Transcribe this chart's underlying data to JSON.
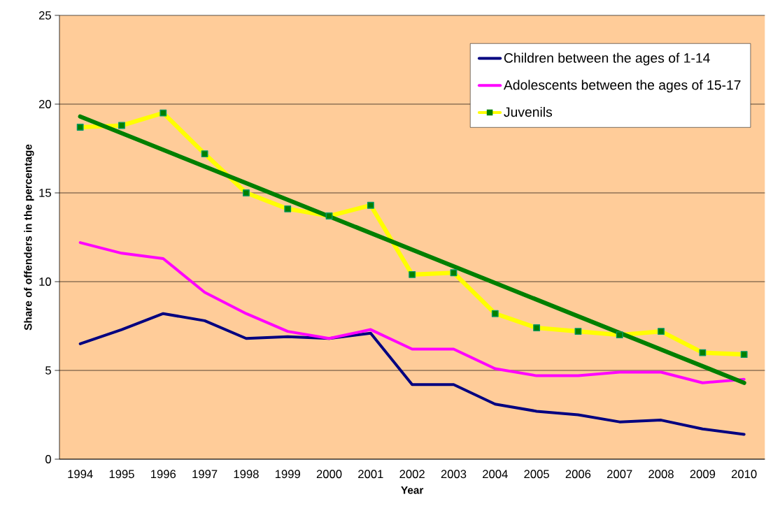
{
  "chart_data": {
    "type": "line",
    "xlabel": "Year",
    "ylabel": "Share of offenders in the percentage",
    "categories": [
      "1994",
      "1995",
      "1996",
      "1997",
      "1998",
      "1999",
      "2000",
      "2001",
      "2002",
      "2003",
      "2004",
      "2005",
      "2006",
      "2007",
      "2008",
      "2009",
      "2010"
    ],
    "series": [
      {
        "name": "Children between the ages of 1-14",
        "color": "#000080",
        "values": [
          6.5,
          7.3,
          8.2,
          7.8,
          6.8,
          6.9,
          6.8,
          7.1,
          4.2,
          4.2,
          3.1,
          2.7,
          2.5,
          2.1,
          2.2,
          1.7,
          1.4
        ]
      },
      {
        "name": "Adolescents between the ages of 15-17",
        "color": "#ff00ff",
        "values": [
          12.2,
          11.6,
          11.3,
          9.4,
          8.2,
          7.2,
          6.8,
          7.3,
          6.2,
          6.2,
          5.1,
          4.7,
          4.7,
          4.9,
          4.9,
          4.3,
          4.5
        ]
      },
      {
        "name": "Juvenils",
        "color": "#ffff00",
        "marker": "square",
        "values": [
          18.7,
          18.8,
          19.5,
          17.2,
          15.0,
          14.1,
          13.7,
          14.3,
          10.4,
          10.5,
          8.2,
          7.4,
          7.2,
          7.0,
          7.2,
          6.0,
          5.9
        ]
      },
      {
        "type": "line",
        "color": "#007f00",
        "values": [
          19.3,
          null,
          null,
          null,
          null,
          null,
          null,
          null,
          null,
          null,
          null,
          null,
          null,
          null,
          null,
          null,
          4.3
        ]
      }
    ],
    "ylim": [
      0,
      25
    ],
    "yticks": [
      0,
      5,
      10,
      15,
      20,
      25
    ],
    "grid": "y",
    "legend": "top right"
  }
}
